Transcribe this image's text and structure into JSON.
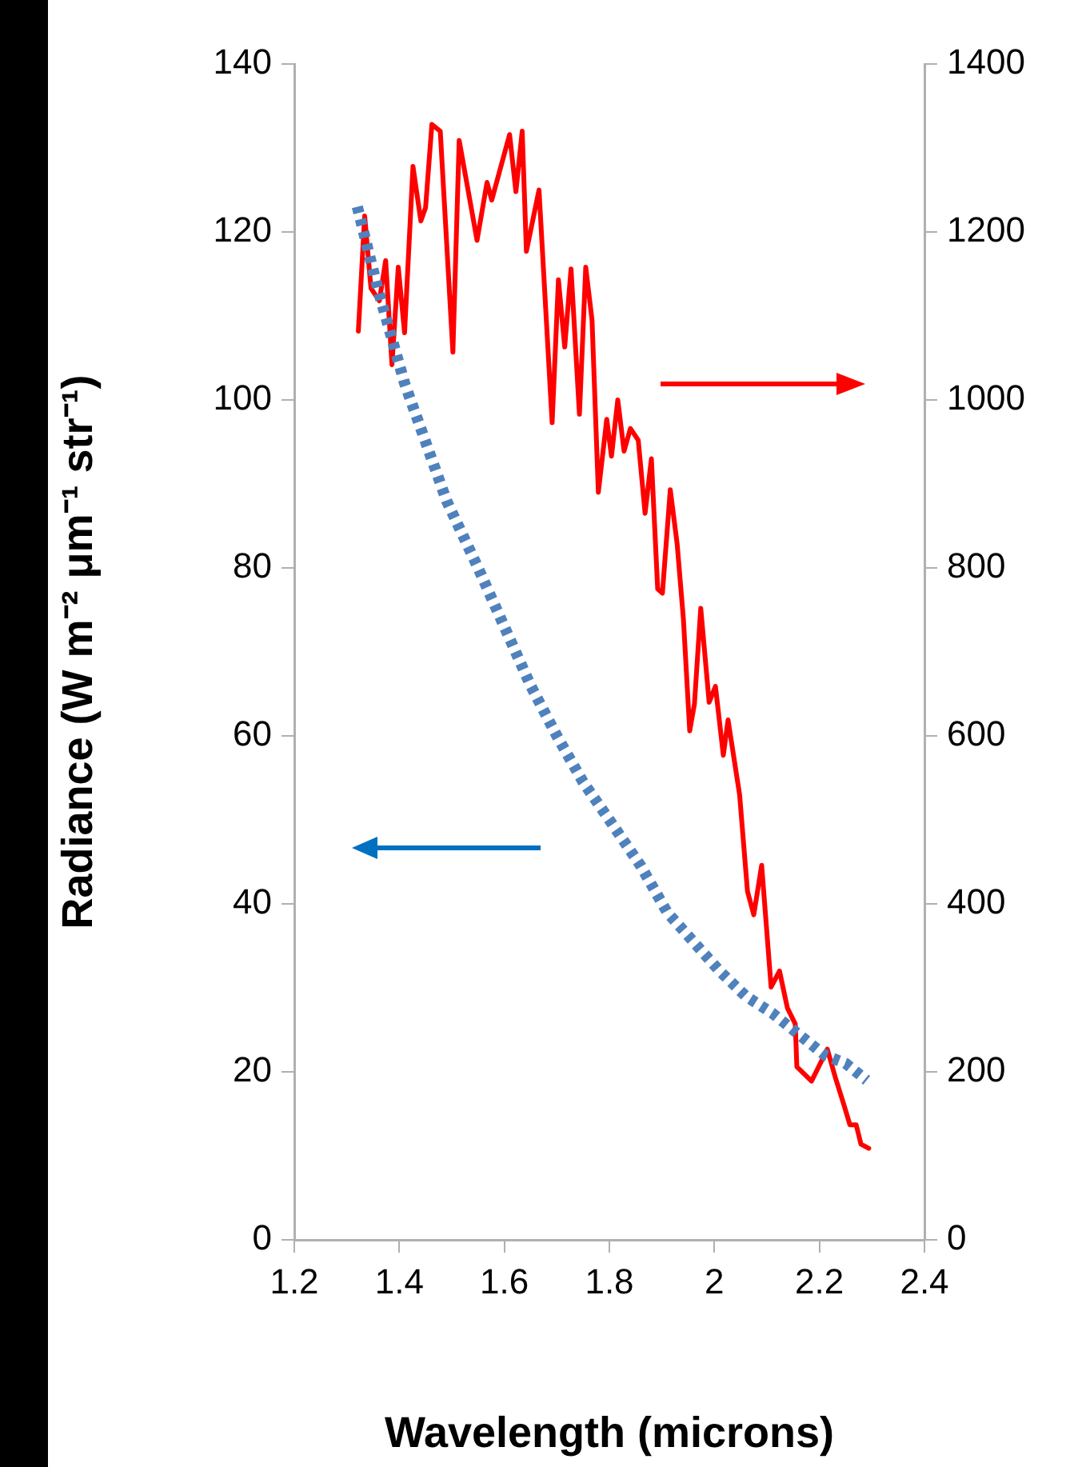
{
  "chart_data": {
    "type": "line",
    "xlabel": "Wavelength (microns)",
    "ylabel": "Radiance (W m⁻² μm⁻¹ str⁻¹)",
    "xlim": [
      1.2,
      2.4
    ],
    "xticks": [
      1.2,
      1.4,
      1.6,
      1.8,
      2,
      2.2,
      2.4
    ],
    "ylim": [
      0,
      140
    ],
    "yticks": [
      0,
      20,
      40,
      60,
      80,
      100,
      120,
      140
    ],
    "y2lim": [
      0,
      1400
    ],
    "y2ticks": [
      0,
      200,
      400,
      600,
      800,
      1000,
      1200,
      1400
    ],
    "grid": false,
    "legend": false,
    "series": [
      {
        "color": "#4f81bd",
        "line_style": "dotted",
        "x": [
          1.32,
          1.36,
          1.41,
          1.45,
          1.49,
          1.55,
          1.6,
          1.65,
          1.7,
          1.75,
          1.8,
          1.86,
          1.91,
          1.96,
          2.01,
          2.06,
          2.11,
          2.16,
          2.21,
          2.25,
          2.29
        ],
        "values": [
          123,
          113,
          102,
          95,
          88,
          80,
          73,
          66,
          60,
          54.5,
          50,
          44.5,
          39,
          35.5,
          32,
          29,
          27,
          24.5,
          22,
          21,
          19
        ]
      },
      {
        "color": "#ff0000",
        "axis": "y2",
        "line_style": "solid",
        "x": [
          1.322,
          1.334,
          1.346,
          1.362,
          1.374,
          1.386,
          1.398,
          1.41,
          1.426,
          1.441,
          1.45,
          1.462,
          1.478,
          1.502,
          1.514,
          1.548,
          1.567,
          1.576,
          1.61,
          1.622,
          1.634,
          1.642,
          1.666,
          1.691,
          1.703,
          1.715,
          1.727,
          1.743,
          1.755,
          1.767,
          1.779,
          1.795,
          1.804,
          1.816,
          1.828,
          1.84,
          1.855,
          1.868,
          1.88,
          1.892,
          1.901,
          1.916,
          1.929,
          1.941,
          1.953,
          1.962,
          1.974,
          1.99,
          2.002,
          2.017,
          2.026,
          2.048,
          2.063,
          2.075,
          2.09,
          2.108,
          2.124,
          2.139,
          2.154,
          2.157,
          2.185,
          2.215,
          2.23,
          2.246,
          2.258,
          2.27,
          2.279,
          2.294
        ],
        "values": [
          1082,
          1219,
          1133,
          1118,
          1166,
          1042,
          1158,
          1080,
          1278,
          1213,
          1229,
          1328,
          1320,
          1057,
          1309,
          1190,
          1259,
          1238,
          1316,
          1248,
          1320,
          1177,
          1250,
          973,
          1143,
          1063,
          1156,
          983,
          1158,
          1095,
          890,
          977,
          933,
          1000,
          939,
          966,
          952,
          865,
          930,
          775,
          770,
          893,
          829,
          739,
          606,
          638,
          752,
          640,
          659,
          577,
          619,
          530,
          415,
          387,
          446,
          301,
          320,
          276,
          257,
          206,
          189,
          227,
          194,
          162,
          137,
          137,
          114,
          109
        ]
      }
    ]
  }
}
